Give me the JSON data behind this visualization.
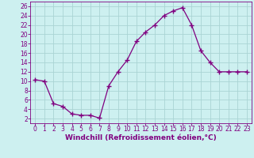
{
  "x": [
    0,
    1,
    2,
    3,
    4,
    5,
    6,
    7,
    8,
    9,
    10,
    11,
    12,
    13,
    14,
    15,
    16,
    17,
    18,
    19,
    20,
    21,
    22,
    23
  ],
  "y": [
    10.3,
    10.0,
    5.2,
    4.6,
    3.0,
    2.7,
    2.7,
    2.1,
    9.0,
    12.0,
    14.5,
    18.5,
    20.5,
    22.0,
    24.0,
    25.0,
    25.7,
    22.0,
    16.5,
    14.0,
    12.0,
    12.0,
    12.0,
    12.0
  ],
  "line_color": "#800080",
  "marker": "+",
  "marker_size": 4,
  "bg_color": "#cdf0f0",
  "grid_color": "#aad4d4",
  "xlabel": "Windchill (Refroidissement éolien,°C)",
  "xlim": [
    -0.5,
    23.5
  ],
  "ylim": [
    1,
    27
  ],
  "yticks": [
    2,
    4,
    6,
    8,
    10,
    12,
    14,
    16,
    18,
    20,
    22,
    24,
    26
  ],
  "xticks": [
    0,
    1,
    2,
    3,
    4,
    5,
    6,
    7,
    8,
    9,
    10,
    11,
    12,
    13,
    14,
    15,
    16,
    17,
    18,
    19,
    20,
    21,
    22,
    23
  ],
  "xlabel_color": "#800080",
  "tick_color": "#800080",
  "spine_color": "#800080",
  "tick_fontsize": 5.5,
  "xlabel_fontsize": 6.5
}
